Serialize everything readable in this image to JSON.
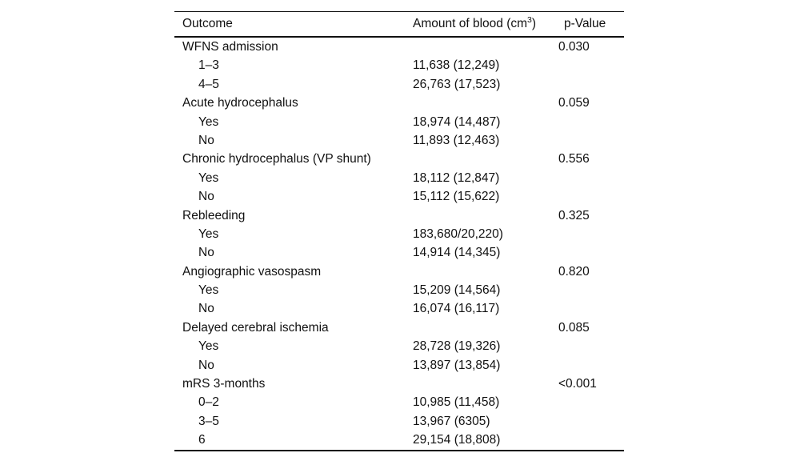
{
  "page": {
    "background_color": "#ffffff",
    "text_color": "#111111",
    "rule_color": "#111111"
  },
  "table": {
    "header": {
      "outcome": "Outcome",
      "amount_prefix": "Amount of blood (cm",
      "amount_sup": "3",
      "amount_suffix": ")",
      "pvalue": "p-Value"
    },
    "rows": [
      {
        "label": "WFNS admission",
        "indent": false,
        "amount": "",
        "p": "0.030"
      },
      {
        "label": "1–3",
        "indent": true,
        "amount": "11,638 (12,249)",
        "p": ""
      },
      {
        "label": "4–5",
        "indent": true,
        "amount": "26,763 (17,523)",
        "p": ""
      },
      {
        "label": "Acute hydrocephalus",
        "indent": false,
        "amount": "",
        "p": "0.059"
      },
      {
        "label": "Yes",
        "indent": true,
        "amount": "18,974 (14,487)",
        "p": ""
      },
      {
        "label": "No",
        "indent": true,
        "amount": "11,893 (12,463)",
        "p": ""
      },
      {
        "label": "Chronic hydrocephalus (VP shunt)",
        "indent": false,
        "amount": "",
        "p": "0.556"
      },
      {
        "label": "Yes",
        "indent": true,
        "amount": "18,112 (12,847)",
        "p": ""
      },
      {
        "label": "No",
        "indent": true,
        "amount": "15,112 (15,622)",
        "p": ""
      },
      {
        "label": "Rebleeding",
        "indent": false,
        "amount": "",
        "p": "0.325"
      },
      {
        "label": "Yes",
        "indent": true,
        "amount": "183,680/20,220)",
        "p": ""
      },
      {
        "label": "No",
        "indent": true,
        "amount": "14,914 (14,345)",
        "p": ""
      },
      {
        "label": "Angiographic vasospasm",
        "indent": false,
        "amount": "",
        "p": "0.820"
      },
      {
        "label": "Yes",
        "indent": true,
        "amount": "15,209 (14,564)",
        "p": ""
      },
      {
        "label": "No",
        "indent": true,
        "amount": "16,074 (16,117)",
        "p": ""
      },
      {
        "label": "Delayed cerebral ischemia",
        "indent": false,
        "amount": "",
        "p": "0.085"
      },
      {
        "label": "Yes",
        "indent": true,
        "amount": "28,728 (19,326)",
        "p": ""
      },
      {
        "label": "No",
        "indent": true,
        "amount": "13,897 (13,854)",
        "p": ""
      },
      {
        "label": "mRS 3-months",
        "indent": false,
        "amount": "",
        "p": "<0.001"
      },
      {
        "label": "0–2",
        "indent": true,
        "amount": "10,985 (11,458)",
        "p": ""
      },
      {
        "label": "3–5",
        "indent": true,
        "amount": "13,967 (6305)",
        "p": ""
      },
      {
        "label": "6",
        "indent": true,
        "amount": "29,154 (18,808)",
        "p": ""
      }
    ]
  }
}
